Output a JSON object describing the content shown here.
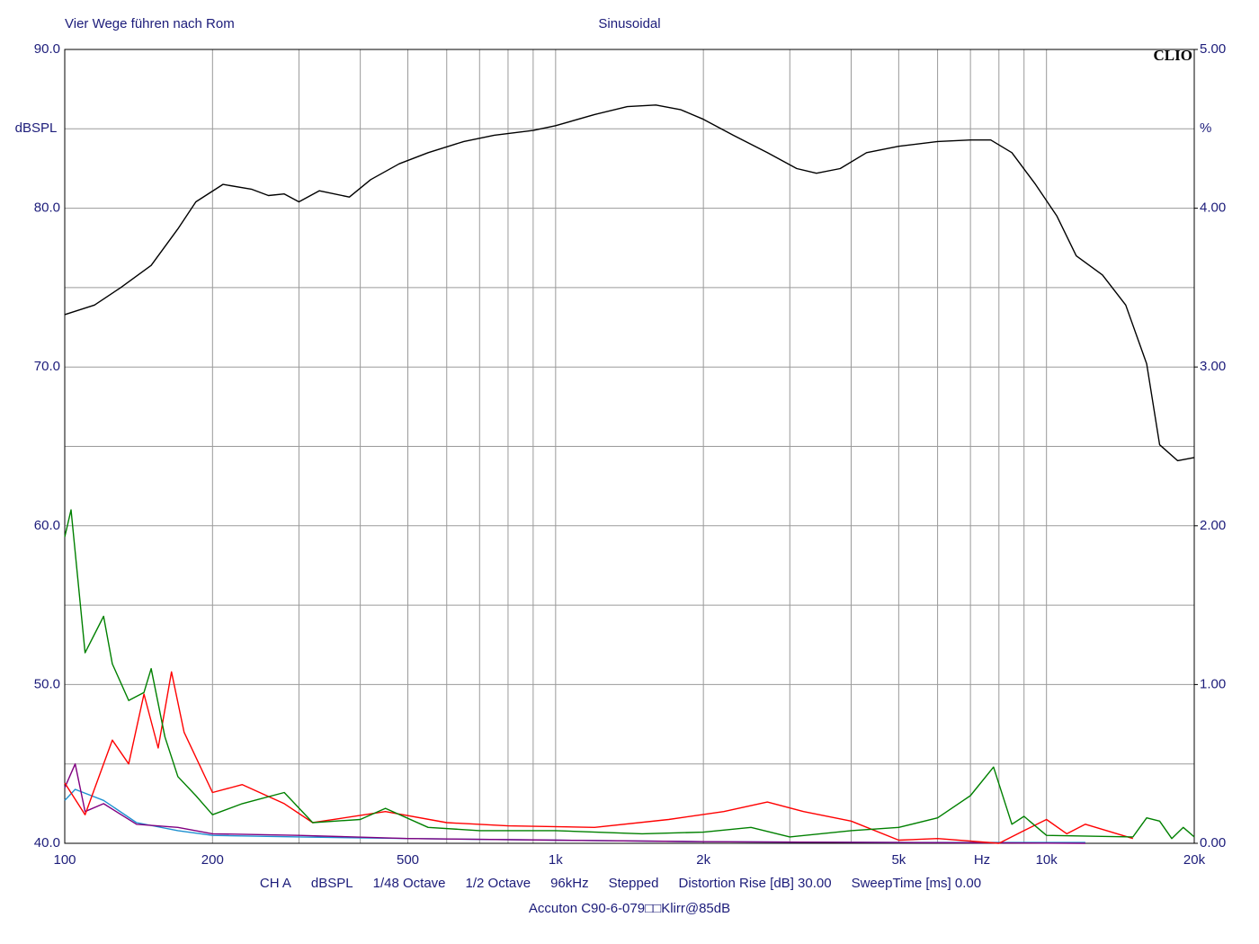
{
  "chart_data": {
    "type": "line",
    "title": "Vier Wege führen nach Rom",
    "subtitle": "Sinusoidal",
    "logo": "CLIO",
    "ylabel": "dBSPL",
    "y2label": "%",
    "xlabel": "Hz",
    "info": [
      "CH A",
      "dBSPL",
      "1/48 Octave",
      "1/2 Octave",
      "96kHz",
      "Stepped",
      "Distortion Rise [dB] 30.00",
      "SweepTime [ms] 0.00"
    ],
    "caption": "Accuton C90-6-079□□Klirr@85dB",
    "xscale": "log",
    "xlim": [
      100,
      20000
    ],
    "xticks": [
      100,
      200,
      500,
      {
        "value": 1000,
        "label": "1k"
      },
      {
        "value": 2000,
        "label": "2k"
      },
      {
        "value": 5000,
        "label": "5k"
      },
      {
        "value": 10000,
        "label": "10k"
      },
      {
        "value": 20000,
        "label": "20k"
      }
    ],
    "xminor": [
      300,
      400,
      600,
      700,
      800,
      900,
      3000,
      4000,
      6000,
      7000,
      8000,
      9000
    ],
    "ylim": [
      40,
      90
    ],
    "yticks": [
      {
        "value": 40,
        "label": "40.0"
      },
      {
        "value": 50,
        "label": "50.0"
      },
      {
        "value": 60,
        "label": "60.0"
      },
      {
        "value": 70,
        "label": "70.0"
      },
      {
        "value": 80,
        "label": "80.0"
      },
      {
        "value": 90,
        "label": "90.0"
      }
    ],
    "yminor": [
      45,
      55,
      65,
      75,
      85
    ],
    "y2lim": [
      0,
      5
    ],
    "y2ticks": [
      {
        "value": 0,
        "label": "0.00"
      },
      {
        "value": 1,
        "label": "1.00"
      },
      {
        "value": 2,
        "label": "2.00"
      },
      {
        "value": 3,
        "label": "3.00"
      },
      {
        "value": 4,
        "label": "4.00"
      },
      {
        "value": 5,
        "label": "5.00"
      }
    ],
    "grid": true,
    "series": [
      {
        "color": "#000000",
        "x": [
          100,
          115,
          130,
          150,
          170,
          185,
          210,
          240,
          260,
          280,
          300,
          330,
          380,
          420,
          480,
          550,
          650,
          750,
          900,
          1000,
          1200,
          1400,
          1600,
          1800,
          2000,
          2300,
          2700,
          3100,
          3400,
          3800,
          4300,
          5000,
          6000,
          7000,
          7700,
          8500,
          9500,
          10500,
          11500,
          13000,
          14500,
          16000,
          17000,
          18500,
          20000
        ],
        "values": [
          73.3,
          73.9,
          75.0,
          76.4,
          78.7,
          80.4,
          81.5,
          81.2,
          80.8,
          80.9,
          80.4,
          81.1,
          80.7,
          81.8,
          82.8,
          83.5,
          84.2,
          84.6,
          84.9,
          85.2,
          85.9,
          86.4,
          86.5,
          86.2,
          85.6,
          84.6,
          83.5,
          82.5,
          82.2,
          82.5,
          83.5,
          83.9,
          84.2,
          84.3,
          84.3,
          83.5,
          81.5,
          79.5,
          77.0,
          75.8,
          73.9,
          70.2,
          65.1,
          64.1,
          64.3
        ]
      },
      {
        "color": "#008000",
        "x": [
          100,
          103,
          110,
          120,
          125,
          135,
          145,
          150,
          160,
          170,
          185,
          200,
          230,
          280,
          320,
          400,
          450,
          550,
          700,
          1000,
          1500,
          2000,
          2500,
          3000,
          4000,
          5000,
          6000,
          7000,
          7800,
          8500,
          9000,
          10000,
          15000,
          16000,
          17000,
          18000,
          19000,
          20000
        ],
        "values": [
          59.3,
          61.0,
          52.0,
          54.3,
          51.3,
          49.0,
          49.5,
          51.0,
          46.7,
          44.2,
          43.0,
          41.8,
          42.5,
          43.2,
          41.3,
          41.5,
          42.2,
          41.0,
          40.8,
          40.8,
          40.6,
          40.7,
          41.0,
          40.4,
          40.8,
          41.0,
          41.6,
          43.0,
          44.8,
          41.2,
          41.7,
          40.5,
          40.4,
          41.6,
          41.4,
          40.3,
          41.0,
          40.4
        ]
      },
      {
        "color": "#ff0000",
        "x": [
          100,
          110,
          120,
          125,
          135,
          145,
          155,
          165,
          175,
          200,
          230,
          280,
          320,
          450,
          600,
          800,
          1200,
          1700,
          2200,
          2700,
          3200,
          4000,
          5000,
          6000,
          8000,
          9000,
          10000,
          11000,
          12000,
          15000
        ],
        "values": [
          43.8,
          41.8,
          45.0,
          46.5,
          45.0,
          49.4,
          46.0,
          50.8,
          47.0,
          43.2,
          43.7,
          42.5,
          41.3,
          42.0,
          41.3,
          41.1,
          41.0,
          41.5,
          42.0,
          42.6,
          42.0,
          41.4,
          40.2,
          40.3,
          40.0,
          40.8,
          41.5,
          40.6,
          41.2,
          40.3
        ]
      },
      {
        "color": "#800080",
        "x": [
          100,
          105,
          110,
          120,
          140,
          170,
          200,
          300,
          500,
          1000,
          2000,
          5000,
          12000
        ],
        "values": [
          43.5,
          45.0,
          42.0,
          42.5,
          41.2,
          41.0,
          40.6,
          40.5,
          40.3,
          40.2,
          40.1,
          40.05,
          40.0
        ]
      },
      {
        "color": "#1e90d0",
        "x": [
          100,
          105,
          120,
          140,
          170,
          200,
          300,
          500,
          1000,
          2000,
          5000,
          12000
        ],
        "values": [
          42.7,
          43.4,
          42.7,
          41.3,
          40.8,
          40.5,
          40.4,
          40.3,
          40.2,
          40.1,
          40.05,
          40.05
        ]
      }
    ]
  }
}
